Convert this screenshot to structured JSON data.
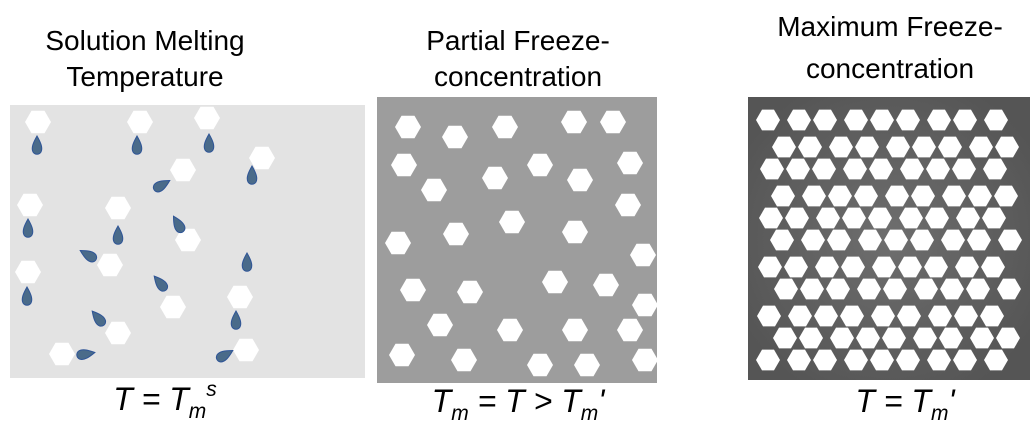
{
  "panels": [
    {
      "title": [
        "Solution Melting",
        "Temperature"
      ],
      "formula": [
        "T = T",
        "m",
        "s"
      ]
    },
    {
      "title": [
        "Partial Freeze-",
        "concentration"
      ],
      "formula": [
        "T",
        "m",
        " = T > T",
        "m",
        "'"
      ]
    },
    {
      "title": [
        "Maximum Freeze-",
        "concentration"
      ],
      "formula": [
        "T = T",
        "m",
        "'"
      ]
    }
  ]
}
